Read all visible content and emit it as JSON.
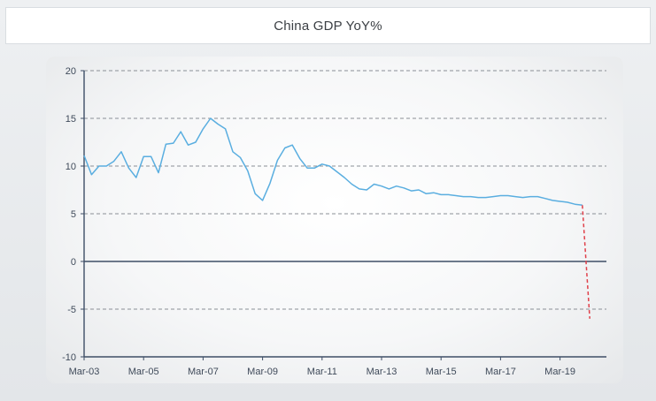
{
  "chart_title": "China GDP YoY%",
  "chart_data": {
    "type": "line",
    "title": "China GDP YoY%",
    "xlabel": "",
    "ylabel": "",
    "ylim": [
      -10,
      20
    ],
    "yticks": [
      20,
      15,
      10,
      5,
      0,
      -5,
      -10
    ],
    "xticks": [
      "Mar-03",
      "Mar-05",
      "Mar-07",
      "Mar-09",
      "Mar-11",
      "Mar-13",
      "Mar-15",
      "Mar-17",
      "Mar-19"
    ],
    "grid": "horizontal dashed",
    "series": [
      {
        "color": "#5aaee0",
        "style": "solid",
        "x": [
          "Mar-03",
          "Jun-03",
          "Sep-03",
          "Dec-03",
          "Mar-04",
          "Jun-04",
          "Sep-04",
          "Dec-04",
          "Mar-05",
          "Jun-05",
          "Sep-05",
          "Dec-05",
          "Mar-06",
          "Jun-06",
          "Sep-06",
          "Dec-06",
          "Mar-07",
          "Jun-07",
          "Sep-07",
          "Dec-07",
          "Mar-08",
          "Jun-08",
          "Sep-08",
          "Dec-08",
          "Mar-09",
          "Jun-09",
          "Sep-09",
          "Dec-09",
          "Mar-10",
          "Jun-10",
          "Sep-10",
          "Dec-10",
          "Mar-11",
          "Jun-11",
          "Sep-11",
          "Dec-11",
          "Mar-12",
          "Jun-12",
          "Sep-12",
          "Dec-12",
          "Mar-13",
          "Jun-13",
          "Sep-13",
          "Dec-13",
          "Mar-14",
          "Jun-14",
          "Sep-14",
          "Dec-14",
          "Mar-15",
          "Jun-15",
          "Sep-15",
          "Dec-15",
          "Mar-16",
          "Jun-16",
          "Sep-16",
          "Dec-16",
          "Mar-17",
          "Jun-17",
          "Sep-17",
          "Dec-17",
          "Mar-18",
          "Jun-18",
          "Sep-18",
          "Dec-18",
          "Mar-19",
          "Jun-19",
          "Sep-19",
          "Dec-19"
        ],
        "values": [
          11.1,
          9.1,
          10.0,
          10.0,
          10.5,
          11.5,
          9.8,
          8.8,
          11.0,
          11.0,
          9.3,
          12.3,
          12.4,
          13.6,
          12.2,
          12.5,
          13.9,
          15.0,
          14.4,
          13.9,
          11.5,
          10.9,
          9.5,
          7.1,
          6.4,
          8.2,
          10.6,
          11.9,
          12.2,
          10.8,
          9.8,
          9.8,
          10.2,
          10.0,
          9.4,
          8.8,
          8.1,
          7.6,
          7.5,
          8.1,
          7.9,
          7.6,
          7.9,
          7.7,
          7.4,
          7.5,
          7.1,
          7.2,
          7.0,
          7.0,
          6.9,
          6.8,
          6.8,
          6.7,
          6.7,
          6.8,
          6.9,
          6.9,
          6.8,
          6.7,
          6.8,
          6.8,
          6.6,
          6.4,
          6.3,
          6.2,
          6.0,
          5.9
        ]
      },
      {
        "color": "#e0404a",
        "style": "dashed",
        "x": [
          "Dec-19",
          "Mar-20"
        ],
        "values": [
          5.9,
          -6.0
        ]
      }
    ]
  }
}
